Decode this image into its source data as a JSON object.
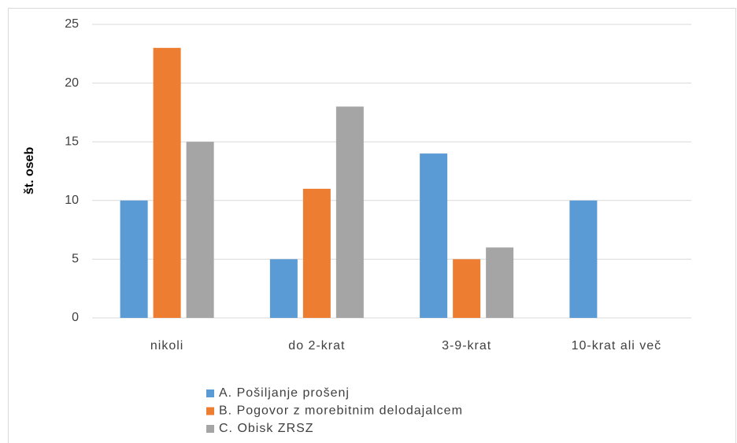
{
  "chart_data": {
    "type": "bar",
    "y_label": "št. oseb",
    "categories": [
      "nikoli",
      "do 2-krat",
      "3-9-krat",
      "10-krat ali več"
    ],
    "series": [
      {
        "name": "A. Pošiljanje prošenj",
        "color": "#5b9bd5",
        "values": [
          10,
          5,
          14,
          10
        ]
      },
      {
        "name": "B. Pogovor z morebitnim delodajalcem",
        "color": "#ed7d31",
        "values": [
          23,
          11,
          5,
          0
        ]
      },
      {
        "name": "C. Obisk ZRSZ",
        "color": "#a5a5a5",
        "values": [
          15,
          18,
          6,
          0
        ]
      }
    ],
    "ylim": [
      0,
      25
    ],
    "yticks": [
      0,
      5,
      10,
      15,
      20,
      25
    ],
    "grid": true,
    "legend": "bottom"
  }
}
